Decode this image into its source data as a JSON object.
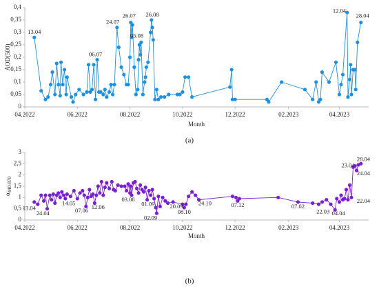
{
  "chart_data": [
    {
      "type": "line",
      "caption": "(a)",
      "x_label": "Month",
      "y_label": "AOD(500)",
      "color": "#1f8fe0",
      "xlim": [
        "2022-04-01",
        "2023-05-05"
      ],
      "xticks": [
        {
          "value": "2022-04-01",
          "label": "04.2022"
        },
        {
          "value": "2022-06-01",
          "label": "06.2022"
        },
        {
          "value": "2022-08-01",
          "label": "08.2022"
        },
        {
          "value": "2022-10-01",
          "label": "10.2022"
        },
        {
          "value": "2022-12-01",
          "label": "12.2022"
        },
        {
          "value": "2023-02-01",
          "label": "02.2023"
        },
        {
          "value": "2023-04-01",
          "label": "04.2023"
        }
      ],
      "ylim": [
        0,
        0.4
      ],
      "yticks": [
        0,
        {
          "value": 0.05,
          "label": "0,05"
        },
        {
          "value": 0.1,
          "label": "0,1"
        },
        {
          "value": 0.15,
          "label": "0,15"
        },
        {
          "value": 0.2,
          "label": "0,2"
        },
        {
          "value": 0.25,
          "label": "0,25"
        },
        {
          "value": 0.3,
          "label": "0,3"
        },
        {
          "value": 0.35,
          "label": "0,35"
        },
        {
          "value": 0.4,
          "label": "0,4"
        }
      ],
      "x": [
        "2022-04-12",
        "2022-04-20",
        "2022-04-25",
        "2022-04-28",
        "2022-05-01",
        "2022-05-03",
        "2022-05-06",
        "2022-05-08",
        "2022-05-10",
        "2022-05-12",
        "2022-05-13",
        "2022-05-15",
        "2022-05-17",
        "2022-05-19",
        "2022-05-20",
        "2022-05-25",
        "2022-05-27",
        "2022-05-30",
        "2022-06-03",
        "2022-06-08",
        "2022-06-12",
        "2022-06-14",
        "2022-06-16",
        "2022-06-18",
        "2022-06-20",
        "2022-06-22",
        "2022-06-24",
        "2022-06-26",
        "2022-06-28",
        "2022-07-01",
        "2022-07-03",
        "2022-07-05",
        "2022-07-08",
        "2022-07-10",
        "2022-07-12",
        "2022-07-14",
        "2022-07-17",
        "2022-07-19",
        "2022-07-22",
        "2022-07-25",
        "2022-07-28",
        "2022-07-30",
        "2022-08-01",
        "2022-08-02",
        "2022-08-03",
        "2022-08-04",
        "2022-08-06",
        "2022-08-08",
        "2022-08-10",
        "2022-08-11",
        "2022-08-12",
        "2022-08-13",
        "2022-08-14",
        "2022-08-16",
        "2022-08-18",
        "2022-08-19",
        "2022-08-20",
        "2022-08-22",
        "2022-08-25",
        "2022-08-26",
        "2022-08-27",
        "2022-08-28",
        "2022-08-30",
        "2022-09-01",
        "2022-09-03",
        "2022-09-06",
        "2022-09-10",
        "2022-09-15",
        "2022-09-25",
        "2022-09-28",
        "2022-10-01",
        "2022-10-04",
        "2022-10-08",
        "2022-10-12",
        "2022-11-25",
        "2022-11-27",
        "2022-11-28",
        "2022-12-01",
        "2023-01-07",
        "2023-01-09",
        "2023-01-24",
        "2023-02-20",
        "2023-03-01",
        "2023-03-05",
        "2023-03-08",
        "2023-03-10",
        "2023-03-12",
        "2023-03-20",
        "2023-03-28",
        "2023-04-01",
        "2023-04-03",
        "2023-04-05",
        "2023-04-10",
        "2023-04-11",
        "2023-04-13",
        "2023-04-14",
        "2023-04-15",
        "2023-04-17",
        "2023-04-19",
        "2023-04-20",
        "2023-04-22",
        "2023-04-26"
      ],
      "values": [
        0.28,
        0.065,
        0.03,
        0.04,
        0.09,
        0.14,
        0.05,
        0.175,
        0.09,
        0.045,
        0.18,
        0.09,
        0.15,
        0.05,
        0.12,
        0.04,
        0.02,
        0.05,
        0.07,
        0.05,
        0.06,
        0.17,
        0.06,
        0.07,
        0.17,
        0.03,
        0.19,
        0.06,
        0.06,
        0.05,
        0.07,
        0.04,
        0.06,
        0.09,
        0.05,
        0.09,
        0.32,
        0.24,
        0.16,
        0.13,
        0.09,
        0.09,
        0.2,
        0.34,
        0.28,
        0.33,
        0.16,
        0.05,
        0.07,
        0.19,
        0.25,
        0.21,
        0.26,
        0.05,
        0.1,
        0.12,
        0.16,
        0.18,
        0.3,
        0.35,
        0.32,
        0.27,
        0.03,
        0.07,
        0.03,
        0.04,
        0.04,
        0.05,
        0.05,
        0.05,
        0.06,
        0.12,
        0.12,
        0.04,
        0.08,
        0.15,
        0.03,
        0.03,
        0.03,
        0.02,
        0.1,
        0.07,
        0.03,
        0.1,
        0.02,
        0.03,
        0.14,
        0.1,
        0.18,
        0.05,
        0.09,
        0.13,
        0.38,
        0.04,
        0.11,
        0.17,
        0.05,
        0.15,
        0.15,
        0.07,
        0.26,
        0.34
      ],
      "annotations": [
        {
          "text": "13.04",
          "x": "2022-04-12",
          "y": 0.3
        },
        {
          "text": "06.07",
          "x": "2022-06-22",
          "y": 0.21
        },
        {
          "text": "24.07",
          "x": "2022-07-12",
          "y": 0.34
        },
        {
          "text": "26.07",
          "x": "2022-07-31",
          "y": 0.365
        },
        {
          "text": "05.08",
          "x": "2022-08-09",
          "y": 0.285
        },
        {
          "text": "26.08",
          "x": "2022-08-27",
          "y": 0.37
        },
        {
          "text": "12.04",
          "x": "2023-04-01",
          "y": 0.385
        },
        {
          "text": "28.04",
          "x": "2023-04-28",
          "y": 0.365
        }
      ]
    },
    {
      "type": "line",
      "caption": "(b)",
      "x_label": "Month",
      "y_label": "α",
      "y_label_subscript": "440-870",
      "color": "#7a1fd2",
      "xlim": [
        "2022-04-01",
        "2023-05-05"
      ],
      "xticks": [
        {
          "value": "2022-04-01",
          "label": "04.2022"
        },
        {
          "value": "2022-06-01",
          "label": "06.2022"
        },
        {
          "value": "2022-08-01",
          "label": "08.2022"
        },
        {
          "value": "2022-10-01",
          "label": "10.2022"
        },
        {
          "value": "2022-12-01",
          "label": "12.2022"
        },
        {
          "value": "2023-02-01",
          "label": "02.2023"
        },
        {
          "value": "2023-04-01",
          "label": "04.2023"
        }
      ],
      "ylim": [
        0,
        3
      ],
      "yticks": [
        0,
        {
          "value": 0.5,
          "label": "0,5"
        },
        1,
        {
          "value": 1.5,
          "label": "1,5"
        },
        2,
        {
          "value": 2.5,
          "label": "2,5"
        },
        3
      ],
      "x": [
        "2022-04-12",
        "2022-04-16",
        "2022-04-20",
        "2022-04-23",
        "2022-04-25",
        "2022-04-27",
        "2022-04-30",
        "2022-05-02",
        "2022-05-04",
        "2022-05-06",
        "2022-05-08",
        "2022-05-10",
        "2022-05-12",
        "2022-05-14",
        "2022-05-16",
        "2022-05-18",
        "2022-05-20",
        "2022-05-24",
        "2022-05-28",
        "2022-06-01",
        "2022-06-04",
        "2022-06-07",
        "2022-06-09",
        "2022-06-11",
        "2022-06-13",
        "2022-06-15",
        "2022-06-17",
        "2022-06-19",
        "2022-06-21",
        "2022-06-23",
        "2022-06-25",
        "2022-06-27",
        "2022-06-29",
        "2022-07-01",
        "2022-07-03",
        "2022-07-05",
        "2022-07-08",
        "2022-07-11",
        "2022-07-13",
        "2022-07-15",
        "2022-07-18",
        "2022-07-22",
        "2022-07-26",
        "2022-07-28",
        "2022-07-30",
        "2022-08-01",
        "2022-08-02",
        "2022-08-03",
        "2022-08-05",
        "2022-08-07",
        "2022-08-09",
        "2022-08-11",
        "2022-08-13",
        "2022-08-15",
        "2022-08-17",
        "2022-08-19",
        "2022-08-21",
        "2022-08-23",
        "2022-08-25",
        "2022-08-27",
        "2022-08-29",
        "2022-08-31",
        "2022-09-01",
        "2022-09-03",
        "2022-09-05",
        "2022-09-08",
        "2022-09-11",
        "2022-09-14",
        "2022-09-20",
        "2022-10-01",
        "2022-10-03",
        "2022-10-05",
        "2022-10-08",
        "2022-10-12",
        "2022-10-16",
        "2022-10-20",
        "2022-11-28",
        "2022-12-02",
        "2022-12-04",
        "2022-12-06",
        "2023-01-20",
        "2023-02-12",
        "2023-03-01",
        "2023-03-08",
        "2023-03-12",
        "2023-03-17",
        "2023-03-22",
        "2023-03-27",
        "2023-03-29",
        "2023-04-01",
        "2023-04-03",
        "2023-04-05",
        "2023-04-07",
        "2023-04-09",
        "2023-04-11",
        "2023-04-13",
        "2023-04-15",
        "2023-04-17",
        "2023-04-19",
        "2023-04-21",
        "2023-04-23",
        "2023-04-26"
      ],
      "values": [
        0.8,
        0.7,
        1.1,
        0.85,
        1.1,
        0.5,
        1.1,
        0.9,
        1.15,
        0.75,
        1.1,
        1.2,
        1.0,
        1.25,
        1.1,
        0.95,
        1.15,
        1.05,
        1.3,
        0.95,
        1.2,
        1.3,
        1.1,
        0.6,
        1.0,
        1.35,
        1.05,
        1.15,
        0.75,
        1.1,
        1.5,
        1.2,
        1.7,
        1.1,
        1.45,
        1.65,
        1.4,
        1.7,
        1.35,
        1.3,
        1.55,
        1.5,
        1.5,
        1.3,
        1.6,
        1.2,
        1.5,
        1.1,
        1.65,
        1.7,
        1.4,
        1.2,
        1.55,
        1.35,
        1.25,
        1.45,
        0.9,
        1.3,
        1.1,
        1.35,
        0.95,
        0.55,
        0.3,
        1.05,
        0.6,
        1.0,
        0.85,
        0.75,
        0.8,
        0.7,
        0.55,
        0.7,
        1.05,
        1.25,
        1.1,
        0.9,
        1.05,
        1.0,
        0.85,
        0.95,
        1.0,
        0.8,
        0.75,
        0.7,
        0.8,
        0.9,
        0.7,
        0.45,
        0.95,
        0.8,
        1.1,
        0.9,
        0.95,
        1.35,
        0.9,
        1.55,
        1.0,
        2.35,
        2.4,
        2.2,
        2.45,
        2.5
      ],
      "annotations": [
        {
          "text": "13.04",
          "x": "2022-04-06",
          "y": 0.5
        },
        {
          "text": "24.04",
          "x": "2022-04-22",
          "y": 0.28
        },
        {
          "text": "14.05",
          "x": "2022-05-22",
          "y": 0.72
        },
        {
          "text": "07.06",
          "x": "2022-06-06",
          "y": 0.4
        },
        {
          "text": "12.06",
          "x": "2022-06-25",
          "y": 0.55
        },
        {
          "text": "03.08",
          "x": "2022-07-30",
          "y": 0.88
        },
        {
          "text": "01.09",
          "x": "2022-08-22",
          "y": 0.68
        },
        {
          "text": "02.09",
          "x": "2022-08-25",
          "y": 0.08
        },
        {
          "text": "20.09",
          "x": "2022-09-24",
          "y": 0.58
        },
        {
          "text": "08.10",
          "x": "2022-10-03",
          "y": 0.33
        },
        {
          "text": "24.10",
          "x": "2022-10-27",
          "y": 0.72
        },
        {
          "text": "07.12",
          "x": "2022-12-04",
          "y": 0.64
        },
        {
          "text": "07.02",
          "x": "2023-02-12",
          "y": 0.58
        },
        {
          "text": "22.03",
          "x": "2023-03-13",
          "y": 0.35
        },
        {
          "text": "04.04",
          "x": "2023-03-31",
          "y": 0.28
        },
        {
          "text": "22.04",
          "x": "2023-04-29",
          "y": 0.82
        },
        {
          "text": "23.04",
          "x": "2023-04-11",
          "y": 2.4
        },
        {
          "text": "24.04",
          "x": "2023-04-29",
          "y": 2.05
        },
        {
          "text": "28.04",
          "x": "2023-04-29",
          "y": 2.68
        }
      ]
    }
  ]
}
